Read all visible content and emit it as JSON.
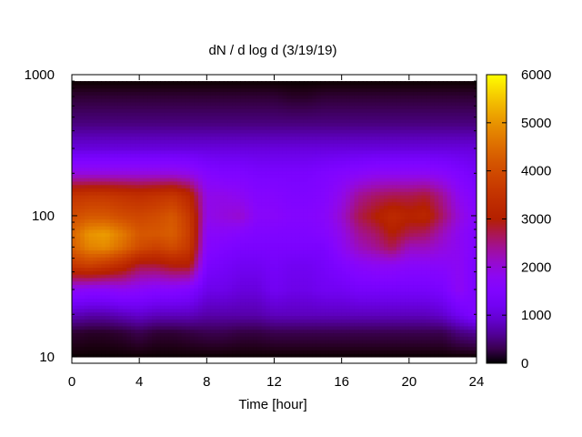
{
  "chart_data": {
    "type": "heatmap",
    "title": "dN / d log d (3/19/19)",
    "xlabel": "Time [hour]",
    "ylabel": "",
    "xlim": [
      0,
      24
    ],
    "ylim": [
      9,
      1000
    ],
    "y_scale": "log",
    "x_ticks": [
      0,
      4,
      8,
      12,
      16,
      20,
      24
    ],
    "y_ticks": [
      10,
      100,
      1000
    ],
    "colorbar": {
      "range": [
        0,
        6000
      ],
      "ticks": [
        0,
        1000,
        2000,
        3000,
        4000,
        5000,
        6000
      ],
      "palette": "gnuplot (black-purple-red-orange-yellow)"
    },
    "grid": false,
    "x": [
      0,
      1,
      2,
      3,
      4,
      5,
      6,
      7,
      8,
      9,
      10,
      11,
      12,
      13,
      14,
      15,
      16,
      17,
      18,
      19,
      20,
      21,
      22,
      23,
      24
    ],
    "y": [
      10,
      15,
      20,
      30,
      45,
      60,
      75,
      100,
      140,
      200,
      300,
      450,
      700,
      900
    ],
    "z": [
      [
        0,
        0,
        0,
        0,
        0,
        0,
        0,
        0,
        0,
        0,
        0,
        0,
        0,
        0,
        0,
        0,
        0,
        0,
        0,
        0,
        0,
        0,
        0,
        0,
        0
      ],
      [
        200,
        150,
        150,
        200,
        300,
        200,
        200,
        250,
        300,
        300,
        250,
        250,
        300,
        300,
        300,
        300,
        300,
        300,
        300,
        300,
        300,
        300,
        300,
        500,
        600
      ],
      [
        800,
        700,
        700,
        800,
        900,
        800,
        800,
        800,
        700,
        700,
        700,
        700,
        800,
        800,
        800,
        800,
        800,
        800,
        800,
        800,
        800,
        800,
        900,
        1200,
        1500
      ],
      [
        1800,
        1700,
        1700,
        1800,
        1700,
        1600,
        1600,
        1500,
        1100,
        1100,
        1000,
        1000,
        1200,
        1100,
        1100,
        1200,
        1200,
        1300,
        1300,
        1300,
        1300,
        1300,
        1400,
        1800,
        1400
      ],
      [
        3600,
        3800,
        3600,
        3300,
        2800,
        2800,
        3000,
        3000,
        1400,
        1300,
        1200,
        1200,
        1300,
        1200,
        1200,
        1300,
        1500,
        1700,
        1800,
        1800,
        1700,
        1700,
        1700,
        1800,
        1400
      ],
      [
        4300,
        4800,
        4900,
        4500,
        4000,
        3800,
        4000,
        3600,
        1600,
        1500,
        1400,
        1400,
        1400,
        1400,
        1400,
        1400,
        1800,
        2200,
        2400,
        2700,
        2200,
        2200,
        2000,
        1800,
        1500
      ],
      [
        4400,
        5000,
        5100,
        4700,
        4200,
        4200,
        4300,
        3700,
        1700,
        1700,
        1600,
        1500,
        1500,
        1500,
        1500,
        1600,
        1900,
        2400,
        2600,
        3000,
        2700,
        2600,
        2200,
        1800,
        1500
      ],
      [
        4000,
        4200,
        4200,
        4000,
        3900,
        4000,
        4200,
        3600,
        1900,
        2000,
        2100,
        1700,
        1700,
        1600,
        1600,
        1700,
        2100,
        2700,
        3000,
        3300,
        3100,
        3200,
        2600,
        2000,
        1600
      ],
      [
        3500,
        3600,
        3600,
        3500,
        3400,
        3500,
        3600,
        3200,
        1900,
        1900,
        1800,
        1600,
        1600,
        1500,
        1500,
        1600,
        1900,
        2400,
        2600,
        2700,
        2700,
        2800,
        2400,
        1800,
        1500
      ],
      [
        2000,
        2000,
        2000,
        2000,
        2000,
        2000,
        2000,
        1900,
        1600,
        1500,
        1500,
        1400,
        1400,
        1400,
        1400,
        1500,
        1600,
        1700,
        1800,
        1800,
        1800,
        1800,
        1700,
        1500,
        1300
      ],
      [
        1000,
        1000,
        1000,
        1000,
        1000,
        1000,
        1000,
        1000,
        1000,
        1000,
        1000,
        1000,
        1000,
        1000,
        1000,
        1000,
        1000,
        1000,
        1000,
        1000,
        1000,
        1000,
        1000,
        1000,
        1000
      ],
      [
        500,
        500,
        500,
        500,
        500,
        500,
        500,
        500,
        500,
        500,
        500,
        500,
        500,
        500,
        500,
        500,
        500,
        500,
        500,
        500,
        500,
        500,
        500,
        500,
        500
      ],
      [
        200,
        200,
        200,
        200,
        200,
        200,
        200,
        200,
        200,
        200,
        200,
        200,
        200,
        150,
        150,
        200,
        200,
        200,
        200,
        200,
        200,
        200,
        200,
        200,
        200
      ],
      [
        0,
        0,
        0,
        0,
        0,
        0,
        0,
        0,
        0,
        0,
        0,
        0,
        0,
        0,
        0,
        0,
        0,
        0,
        0,
        0,
        0,
        0,
        0,
        0,
        0
      ]
    ]
  }
}
